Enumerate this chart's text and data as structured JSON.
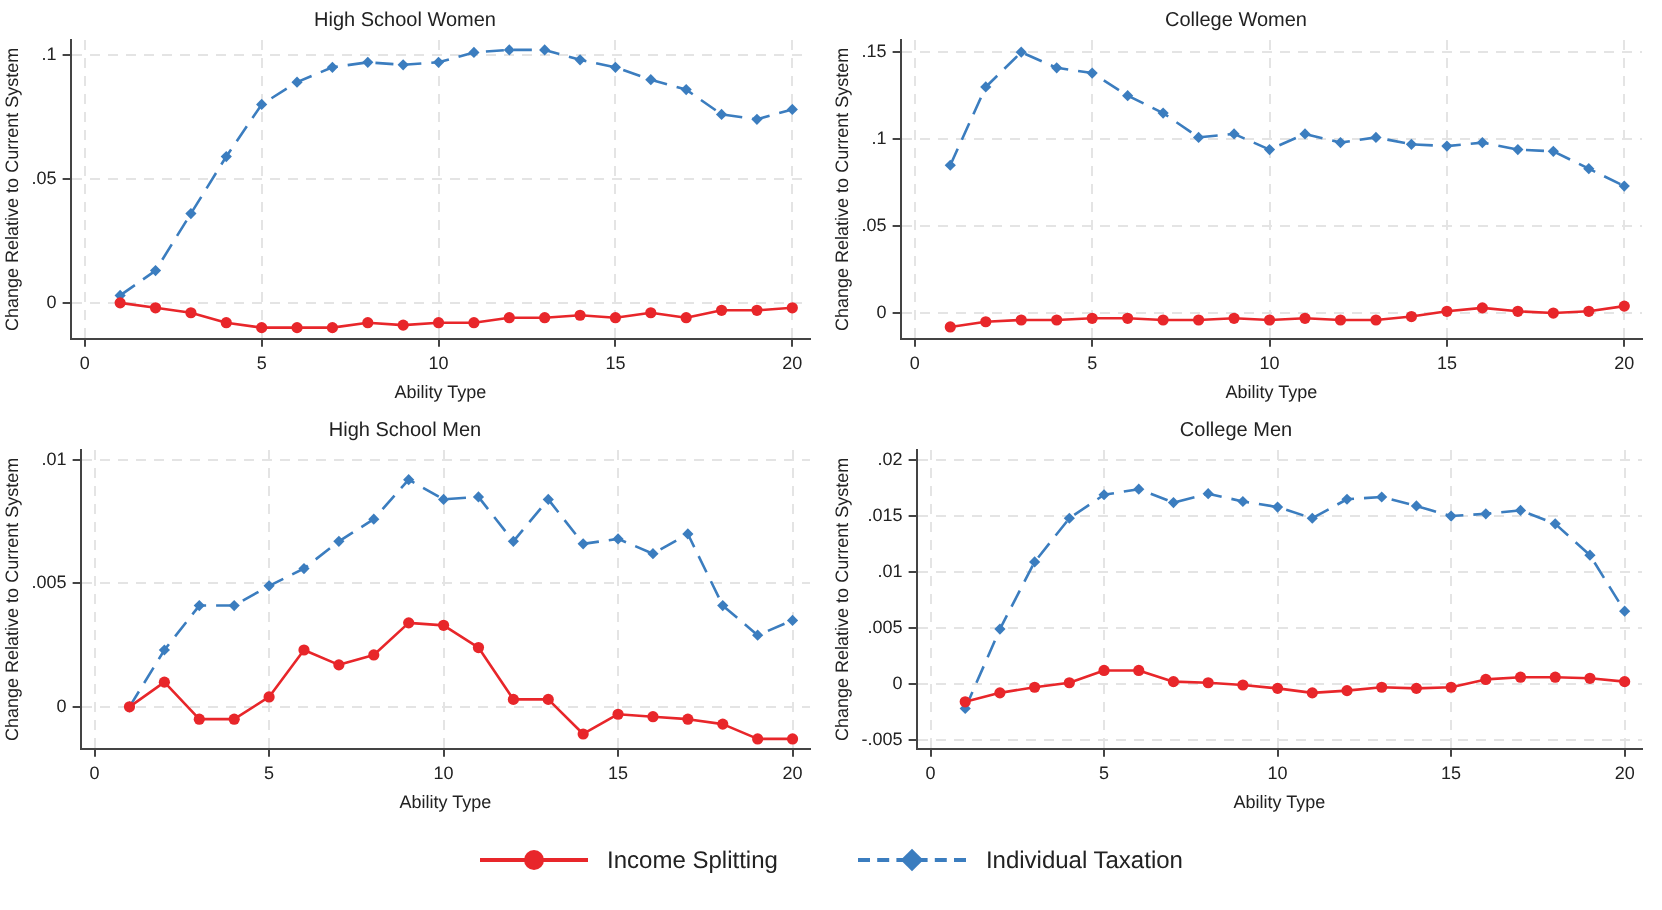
{
  "chart_data": [
    {
      "type": "line",
      "title": "High School Women",
      "xlabel": "Ability Type",
      "ylabel": "Change Relative to Current System",
      "grid": true,
      "legend": "bottom",
      "x": [
        1,
        2,
        3,
        4,
        5,
        6,
        7,
        8,
        9,
        10,
        11,
        12,
        13,
        14,
        15,
        16,
        17,
        18,
        19,
        20
      ],
      "xlim": [
        -0.4,
        20.5
      ],
      "xticks": [
        0,
        5,
        10,
        15,
        20
      ],
      "ylim": [
        -0.0145,
        0.106
      ],
      "yticks": [
        {
          "value": 0,
          "label": "0"
        },
        {
          "value": 0.05,
          "label": ".05"
        },
        {
          "value": 0.1,
          "label": ".1"
        }
      ],
      "series": [
        {
          "name": "Income Splitting",
          "color": "#e8262a",
          "marker": "circle",
          "line_style": "solid",
          "values": [
            0,
            -0.002,
            -0.004,
            -0.008,
            -0.01,
            -0.01,
            -0.01,
            -0.008,
            -0.009,
            -0.008,
            -0.008,
            -0.006,
            -0.006,
            -0.005,
            -0.006,
            -0.004,
            -0.006,
            -0.003,
            -0.003,
            -0.002
          ]
        },
        {
          "name": "Individual Taxation",
          "color": "#3b7dbf",
          "marker": "diamond",
          "line_style": "dashed",
          "values": [
            0.003,
            0.013,
            0.036,
            0.059,
            0.08,
            0.089,
            0.095,
            0.097,
            0.096,
            0.097,
            0.101,
            0.102,
            0.102,
            0.098,
            0.095,
            0.09,
            0.086,
            0.076,
            0.074,
            0.078
          ]
        }
      ]
    },
    {
      "type": "line",
      "title": "College Women",
      "xlabel": "Ability Type",
      "ylabel": "Change Relative to Current System",
      "grid": true,
      "x": [
        1,
        2,
        3,
        4,
        5,
        6,
        7,
        8,
        9,
        10,
        11,
        12,
        13,
        14,
        15,
        16,
        17,
        18,
        19,
        20
      ],
      "xlim": [
        -0.4,
        20.5
      ],
      "xticks": [
        0,
        5,
        10,
        15,
        20
      ],
      "ylim": [
        -0.0148,
        0.157
      ],
      "yticks": [
        {
          "value": 0,
          "label": "0"
        },
        {
          "value": 0.05,
          "label": ".05"
        },
        {
          "value": 0.1,
          "label": ".1"
        },
        {
          "value": 0.15,
          "label": ".15"
        }
      ],
      "series": [
        {
          "color": "#e8262a",
          "marker": "circle",
          "line_style": "solid",
          "values": [
            -0.008,
            -0.005,
            -0.004,
            -0.004,
            -0.003,
            -0.003,
            -0.004,
            -0.004,
            -0.003,
            -0.004,
            -0.003,
            -0.004,
            -0.004,
            -0.002,
            0.001,
            0.003,
            0.001,
            0,
            0.001,
            0.004
          ]
        },
        {
          "color": "#3b7dbf",
          "marker": "diamond",
          "line_style": "dashed",
          "values": [
            0.085,
            0.13,
            0.15,
            0.141,
            0.138,
            0.125,
            0.115,
            0.101,
            0.103,
            0.094,
            0.103,
            0.098,
            0.101,
            0.097,
            0.096,
            0.098,
            0.094,
            0.093,
            0.083,
            0.073
          ]
        }
      ]
    },
    {
      "type": "line",
      "title": "High School Men",
      "xlabel": "Ability Type",
      "ylabel": "Change Relative to Current System",
      "grid": true,
      "x": [
        1,
        2,
        3,
        4,
        5,
        6,
        7,
        8,
        9,
        10,
        11,
        12,
        13,
        14,
        15,
        16,
        17,
        18,
        19,
        20
      ],
      "xlim": [
        -0.4,
        20.5
      ],
      "xticks": [
        0,
        5,
        10,
        15,
        20
      ],
      "ylim": [
        -0.0017,
        0.0104
      ],
      "yticks": [
        {
          "value": 0,
          "label": "0"
        },
        {
          "value": 0.005,
          "label": ".005"
        },
        {
          "value": 0.01,
          "label": ".01"
        }
      ],
      "series": [
        {
          "color": "#e8262a",
          "marker": "circle",
          "line_style": "solid",
          "values": [
            0,
            0.001,
            -0.0005,
            -0.0005,
            0.0004,
            0.0023,
            0.0017,
            0.0021,
            0.0034,
            0.0033,
            0.0024,
            0.0003,
            0.0003,
            -0.0011,
            -0.0003,
            -0.0004,
            -0.0005,
            -0.0007,
            -0.0013,
            -0.0013
          ]
        },
        {
          "color": "#3b7dbf",
          "marker": "diamond",
          "line_style": "dashed",
          "values": [
            0,
            0.0023,
            0.0041,
            0.0041,
            0.0049,
            0.0056,
            0.0067,
            0.0076,
            0.0092,
            0.0084,
            0.0085,
            0.0067,
            0.0084,
            0.0066,
            0.0068,
            0.0062,
            0.007,
            0.0041,
            0.0029,
            0.0035
          ]
        }
      ]
    },
    {
      "type": "line",
      "title": "College Men",
      "xlabel": "Ability Type",
      "ylabel": "Change Relative to Current System",
      "grid": true,
      "x": [
        1,
        2,
        3,
        4,
        5,
        6,
        7,
        8,
        9,
        10,
        11,
        12,
        13,
        14,
        15,
        16,
        17,
        18,
        19,
        20
      ],
      "xlim": [
        -0.4,
        20.5
      ],
      "xticks": [
        0,
        5,
        10,
        15,
        20
      ],
      "ylim": [
        -0.0058,
        0.0209
      ],
      "yticks": [
        {
          "value": -0.005,
          "label": "-.005"
        },
        {
          "value": 0,
          "label": "0"
        },
        {
          "value": 0.005,
          "label": ".005"
        },
        {
          "value": 0.01,
          "label": ".01"
        },
        {
          "value": 0.015,
          "label": ".015"
        },
        {
          "value": 0.02,
          "label": ".02"
        }
      ],
      "series": [
        {
          "color": "#e8262a",
          "marker": "circle",
          "line_style": "solid",
          "values": [
            -0.0016,
            -0.0008,
            -0.0003,
            0.0001,
            0.0012,
            0.0012,
            0.0002,
            0.0001,
            -0.0001,
            -0.0004,
            -0.0008,
            -0.0006,
            -0.0003,
            -0.0004,
            -0.0003,
            0.0004,
            0.0006,
            0.0006,
            0.0005,
            0.0002
          ]
        },
        {
          "color": "#3b7dbf",
          "marker": "diamond",
          "line_style": "dashed",
          "values": [
            -0.0022,
            0.0049,
            0.0109,
            0.0148,
            0.0169,
            0.0174,
            0.0162,
            0.017,
            0.0163,
            0.0158,
            0.0148,
            0.0165,
            0.0167,
            0.0159,
            0.015,
            0.0152,
            0.0155,
            0.0143,
            0.0115,
            0.0065
          ]
        }
      ]
    }
  ]
}
